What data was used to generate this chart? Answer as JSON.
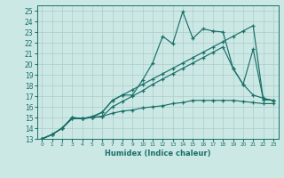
{
  "bg_color": "#cce8e5",
  "line_color": "#1a7068",
  "grid_color": "#aaccca",
  "xlabel": "Humidex (Indice chaleur)",
  "xlim": [
    -0.5,
    23.5
  ],
  "ylim": [
    13,
    25.5
  ],
  "xticks": [
    0,
    1,
    2,
    3,
    4,
    5,
    6,
    7,
    8,
    9,
    10,
    11,
    12,
    13,
    14,
    15,
    16,
    17,
    18,
    19,
    20,
    21,
    22,
    23
  ],
  "yticks": [
    13,
    14,
    15,
    16,
    17,
    18,
    19,
    20,
    21,
    22,
    23,
    24,
    25
  ],
  "x": [
    0,
    1,
    2,
    3,
    4,
    5,
    6,
    7,
    8,
    9,
    10,
    11,
    12,
    13,
    14,
    15,
    16,
    17,
    18,
    19,
    20,
    21,
    22,
    23
  ],
  "y_jagged": [
    13.0,
    13.4,
    14.0,
    14.9,
    14.9,
    15.0,
    15.5,
    16.6,
    17.1,
    17.1,
    18.5,
    20.1,
    22.6,
    21.9,
    24.9,
    22.4,
    23.3,
    23.1,
    23.0,
    19.6,
    18.1,
    21.4,
    16.7,
    16.6
  ],
  "y_upper_trend": [
    13.0,
    13.4,
    14.0,
    14.9,
    14.9,
    15.1,
    15.5,
    16.6,
    17.1,
    17.6,
    18.1,
    18.6,
    19.1,
    19.6,
    20.1,
    20.6,
    21.1,
    21.6,
    22.1,
    22.6,
    23.1,
    23.6,
    16.7,
    16.6
  ],
  "y_lower_trend": [
    13.0,
    13.4,
    14.0,
    15.0,
    14.9,
    15.0,
    15.1,
    15.4,
    15.6,
    15.7,
    15.9,
    16.0,
    16.1,
    16.3,
    16.4,
    16.6,
    16.6,
    16.6,
    16.6,
    16.6,
    16.5,
    16.4,
    16.3,
    16.3
  ],
  "y_mid_peak": [
    13.0,
    13.4,
    14.0,
    15.0,
    14.9,
    15.0,
    15.1,
    16.0,
    16.5,
    17.0,
    17.5,
    18.1,
    18.6,
    19.1,
    19.6,
    20.1,
    20.6,
    21.1,
    21.6,
    19.6,
    18.1,
    17.1,
    16.8,
    16.6
  ]
}
